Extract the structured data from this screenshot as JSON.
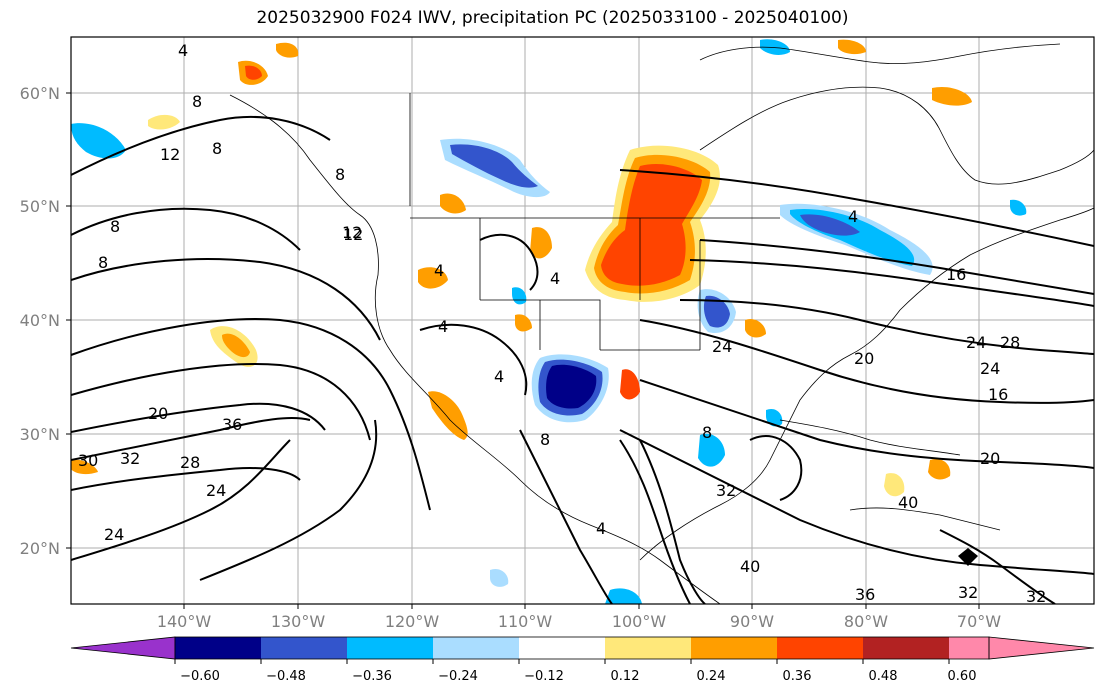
{
  "title": "2025032900 F024 IWV, precipitation PC (2025033100 - 2025040100)",
  "map": {
    "lat_ticks": [
      "60°N",
      "50°N",
      "40°N",
      "30°N",
      "20°N"
    ],
    "lon_ticks": [
      "140°W",
      "130°W",
      "120°W",
      "110°W",
      "100°W",
      "90°W",
      "80°W",
      "70°W"
    ],
    "gridlines": true,
    "contour_labels": [
      "4",
      "8",
      "12",
      "8",
      "8",
      "12",
      "8",
      "4",
      "4",
      "4",
      "8",
      "20",
      "36",
      "32",
      "28",
      "30",
      "24",
      "24",
      "4",
      "4",
      "40",
      "36",
      "32",
      "24",
      "28",
      "24",
      "20",
      "16",
      "24",
      "16",
      "20",
      "40",
      "8",
      "32",
      "12",
      "4",
      "8",
      "32"
    ]
  },
  "colorbar": {
    "labels": [
      "−0.60",
      "−0.48",
      "−0.36",
      "−0.24",
      "−0.12",
      "0.12",
      "0.24",
      "0.36",
      "0.48",
      "0.60"
    ],
    "under_color": "#9932cc",
    "over_color": "#ff88aa",
    "colors": [
      "#000088",
      "#3355cc",
      "#00bbff",
      "#aaddff",
      "#ffffff",
      "#ffe87a",
      "#ff9e00",
      "#ff4400",
      "#b22222"
    ]
  }
}
